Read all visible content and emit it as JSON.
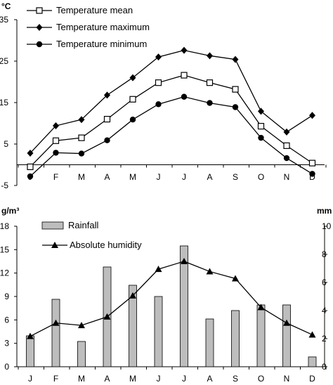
{
  "chart_data": [
    {
      "type": "line",
      "ylabel": "°C",
      "ylim": [
        -5,
        35
      ],
      "yticks": [
        "-5",
        "5",
        "15",
        "25",
        "35"
      ],
      "categories": [
        "J",
        "F",
        "M",
        "A",
        "M",
        "J",
        "J",
        "A",
        "S",
        "O",
        "N",
        "D"
      ],
      "legend": "top-left",
      "grid": false,
      "series": [
        {
          "name": "Temperature mean",
          "marker": "square-open",
          "values": [
            -0.5,
            5.8,
            6.5,
            11.0,
            15.8,
            19.8,
            21.6,
            19.8,
            18.2,
            9.3,
            4.6,
            0.4
          ]
        },
        {
          "name": "Temperature maximum",
          "marker": "diamond",
          "values": [
            2.8,
            9.4,
            10.9,
            16.8,
            21.0,
            26.0,
            27.6,
            26.3,
            25.4,
            12.9,
            7.9,
            11.9
          ]
        },
        {
          "name": "Temperature minimum",
          "marker": "circle",
          "values": [
            -2.8,
            2.9,
            2.7,
            5.9,
            10.9,
            14.6,
            16.4,
            14.9,
            13.9,
            6.5,
            1.6,
            -2.2
          ]
        }
      ]
    },
    {
      "type": "bar+line",
      "ylabel_left": "g/m³",
      "ylabel_right": "mm",
      "ylim_left": [
        0,
        18
      ],
      "ylim_right": [
        0,
        10
      ],
      "yticks_left": [
        "0",
        "3",
        "6",
        "9",
        "12",
        "15",
        "18"
      ],
      "yticks_right": [
        "0",
        "2",
        "4",
        "6",
        "8",
        "10"
      ],
      "categories": [
        "J",
        "F",
        "M",
        "A",
        "M",
        "J",
        "J",
        "A",
        "S",
        "O",
        "N",
        "D"
      ],
      "legend": "top-left",
      "grid": false,
      "series": [
        {
          "name": "Rainfall",
          "kind": "bar",
          "axis": "right",
          "color": "#bdbdbd",
          "values": [
            2.2,
            4.8,
            1.8,
            7.1,
            5.8,
            5.0,
            8.6,
            3.4,
            4.0,
            4.4,
            4.4,
            0.7
          ]
        },
        {
          "name": "Absolute humidity",
          "kind": "line",
          "axis": "left",
          "marker": "triangle",
          "values": [
            3.9,
            5.6,
            5.3,
            6.4,
            9.1,
            12.5,
            13.5,
            12.2,
            11.3,
            7.6,
            5.6,
            4.1
          ]
        }
      ]
    }
  ]
}
